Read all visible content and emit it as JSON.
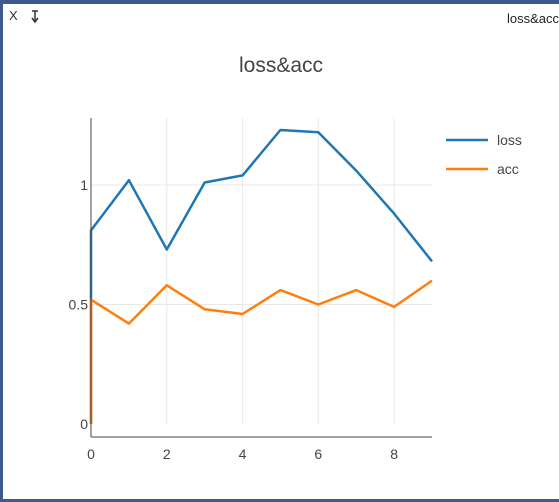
{
  "pane": {
    "close_label": "X",
    "title": "loss&acc"
  },
  "chart_data": {
    "type": "line",
    "title": "loss&acc",
    "xlabel": "",
    "ylabel": "",
    "x_ticks": [
      "0",
      "2",
      "4",
      "6",
      "8"
    ],
    "y_ticks": [
      "0",
      "0.5",
      "1"
    ],
    "xlim": [
      0,
      9
    ],
    "ylim": [
      0,
      1.28
    ],
    "grid": true,
    "legend_position": "top-right",
    "series": [
      {
        "name": "loss",
        "color": "#1f77b4",
        "points": [
          [
            0,
            0
          ],
          [
            0,
            0.81
          ],
          [
            1,
            1.02
          ],
          [
            2,
            0.73
          ],
          [
            3,
            1.01
          ],
          [
            4,
            1.04
          ],
          [
            5,
            1.23
          ],
          [
            6,
            1.22
          ],
          [
            7,
            1.06
          ],
          [
            8,
            0.88
          ],
          [
            9,
            0.68
          ]
        ]
      },
      {
        "name": "acc",
        "color": "#ff7f0e",
        "points": [
          [
            0,
            0
          ],
          [
            0,
            0.52
          ],
          [
            1,
            0.42
          ],
          [
            2,
            0.58
          ],
          [
            3,
            0.48
          ],
          [
            4,
            0.46
          ],
          [
            5,
            0.56
          ],
          [
            6,
            0.5
          ],
          [
            7,
            0.56
          ],
          [
            8,
            0.49
          ],
          [
            9,
            0.6
          ]
        ]
      }
    ]
  }
}
